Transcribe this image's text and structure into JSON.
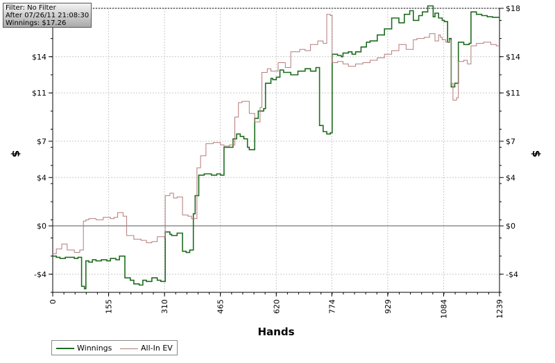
{
  "info": {
    "filter": "Filter: No Filter",
    "after": "After 07/26/11 21:08:30",
    "winnings": "Winnings: $17.26"
  },
  "colors": {
    "winnings": "#1e6b1e",
    "allin": "#b47a7a",
    "zero_line": "#555555",
    "grid": "#c8c8c8"
  },
  "chart_data": {
    "type": "line",
    "xlabel": "Hands",
    "ylabel": "$",
    "xlim": [
      0,
      1239
    ],
    "ylim": [
      -5.5,
      18
    ],
    "xticks": [
      0,
      155,
      310,
      465,
      620,
      774,
      929,
      1084,
      1239
    ],
    "xtick_labels": [
      "0",
      "155",
      "310",
      "465",
      "620",
      "774",
      "929",
      "1084",
      "1239"
    ],
    "yticks": [
      -4,
      0,
      4,
      7,
      11,
      14,
      18
    ],
    "ytick_labels": [
      "-$4",
      "$0",
      "$4",
      "$7",
      "$11",
      "$14",
      "$18"
    ],
    "grid": true,
    "legend_position": "bottom-left",
    "series": [
      {
        "name": "Winnings",
        "color": "#1e6b1e",
        "x": [
          0,
          10,
          20,
          35,
          60,
          70,
          80,
          88,
          92,
          100,
          110,
          120,
          135,
          150,
          160,
          175,
          185,
          200,
          215,
          225,
          240,
          250,
          260,
          275,
          290,
          300,
          312,
          325,
          330,
          345,
          360,
          370,
          380,
          390,
          395,
          405,
          420,
          440,
          455,
          465,
          475,
          500,
          510,
          520,
          530,
          540,
          545,
          560,
          570,
          585,
          590,
          605,
          610,
          620,
          630,
          640,
          660,
          680,
          700,
          715,
          730,
          740,
          750,
          760,
          770,
          775,
          790,
          800,
          805,
          820,
          830,
          840,
          855,
          870,
          880,
          900,
          920,
          940,
          960,
          975,
          990,
          1000,
          1015,
          1025,
          1040,
          1055,
          1060,
          1070,
          1080,
          1086,
          1095,
          1100,
          1105,
          1115,
          1125,
          1140,
          1155,
          1160,
          1175,
          1190,
          1205,
          1220,
          1239
        ],
        "y": [
          -2.5,
          -2.6,
          -2.7,
          -2.6,
          -2.7,
          -2.6,
          -5.0,
          -5.2,
          -2.9,
          -3.0,
          -2.8,
          -2.9,
          -2.8,
          -2.9,
          -2.7,
          -2.8,
          -2.5,
          -4.3,
          -4.5,
          -4.8,
          -4.9,
          -4.5,
          -4.6,
          -4.3,
          -4.5,
          -4.6,
          -0.5,
          -0.7,
          -0.8,
          -0.6,
          -2.1,
          -2.2,
          -2.0,
          1.0,
          2.5,
          4.2,
          4.3,
          4.2,
          4.3,
          4.2,
          6.5,
          7.2,
          7.6,
          7.4,
          7.2,
          6.5,
          6.3,
          8.9,
          9.5,
          9.7,
          11.8,
          12.2,
          12.1,
          12.3,
          12.9,
          12.7,
          12.5,
          12.8,
          13.0,
          12.8,
          13.1,
          8.3,
          7.8,
          7.6,
          7.7,
          14.2,
          14.1,
          14.0,
          14.3,
          14.4,
          14.2,
          14.4,
          14.8,
          15.2,
          15.3,
          15.8,
          16.3,
          17.2,
          16.8,
          17.5,
          17.8,
          17.0,
          17.4,
          17.7,
          18.2,
          17.3,
          17.6,
          17.2,
          17.0,
          16.9,
          15.2,
          15.5,
          11.5,
          11.8,
          15.2,
          15.0,
          15.1,
          17.7,
          17.5,
          17.4,
          17.3,
          17.25,
          17.26
        ]
      },
      {
        "name": "All-In EV",
        "color": "#b47a7a",
        "x": [
          0,
          10,
          25,
          40,
          60,
          75,
          85,
          92,
          100,
          120,
          140,
          160,
          170,
          180,
          195,
          205,
          225,
          245,
          260,
          275,
          290,
          310,
          312,
          325,
          335,
          345,
          360,
          375,
          385,
          400,
          410,
          425,
          445,
          465,
          475,
          490,
          505,
          515,
          525,
          545,
          560,
          575,
          580,
          595,
          605,
          625,
          645,
          660,
          685,
          700,
          715,
          735,
          750,
          760,
          770,
          775,
          790,
          805,
          820,
          840,
          860,
          880,
          900,
          920,
          940,
          960,
          980,
          1000,
          1010,
          1030,
          1045,
          1060,
          1070,
          1075,
          1080,
          1090,
          1100,
          1105,
          1110,
          1120,
          1125,
          1140,
          1150,
          1160,
          1175,
          1195,
          1215,
          1230,
          1239
        ],
        "y": [
          -2.3,
          -1.9,
          -1.5,
          -2.0,
          -2.2,
          -2.0,
          0.4,
          0.5,
          0.6,
          0.5,
          0.7,
          0.6,
          0.7,
          1.1,
          0.8,
          -0.8,
          -1.1,
          -1.2,
          -1.4,
          -1.3,
          -0.9,
          -1.0,
          2.5,
          2.7,
          2.3,
          2.4,
          0.9,
          0.8,
          0.6,
          4.8,
          5.8,
          6.8,
          6.9,
          6.7,
          6.6,
          6.7,
          9.0,
          10.2,
          10.3,
          9.3,
          8.6,
          9.8,
          12.7,
          13.0,
          12.8,
          13.5,
          13.1,
          14.4,
          14.6,
          14.5,
          15.0,
          15.3,
          15.1,
          17.5,
          17.4,
          13.5,
          13.6,
          13.4,
          13.2,
          13.4,
          13.5,
          13.7,
          13.9,
          14.2,
          14.5,
          15.0,
          14.6,
          15.4,
          15.5,
          15.6,
          15.9,
          15.3,
          15.8,
          15.6,
          15.4,
          15.2,
          15.4,
          11.8,
          10.4,
          10.6,
          13.6,
          13.7,
          13.4,
          14.9,
          15.1,
          15.2,
          15.0,
          14.9,
          14.9
        ]
      }
    ]
  }
}
